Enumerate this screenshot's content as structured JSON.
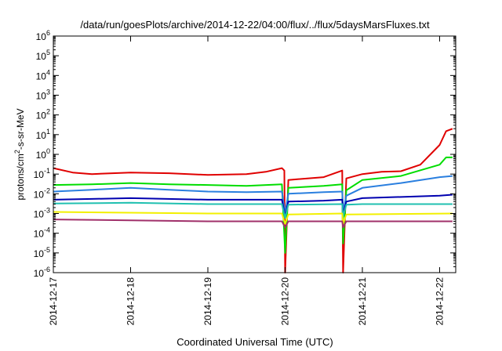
{
  "chart_data": {
    "type": "line",
    "title": "/data/run/goesPlots/archive/2014-12-22/04:00/flux/../flux/5daysMarsFluxes.txt",
    "xlabel": "Coordinated Universal Time (UTC)",
    "ylabel": {
      "pre": "protons/cm",
      "sup": "2",
      "post": "-s-sr-MeV"
    },
    "yscale": "log",
    "ylim": [
      -6,
      6
    ],
    "xlim": [
      "2014-12-17",
      "2014-12-22 05:00"
    ],
    "grid": false,
    "legend": "none",
    "x_ticks": [
      "2014-12-17",
      "2014-12-18",
      "2014-12-19",
      "2014-12-20",
      "2014-12-21",
      "2014-12-22"
    ],
    "y_ticks": [
      {
        "base": "10",
        "exp": "-6"
      },
      {
        "base": "10",
        "exp": "-5"
      },
      {
        "base": "10",
        "exp": "-4"
      },
      {
        "base": "10",
        "exp": "-3"
      },
      {
        "base": "10",
        "exp": "-2"
      },
      {
        "base": "10",
        "exp": "-1"
      },
      {
        "base": "10",
        "exp": "0"
      },
      {
        "base": "10",
        "exp": "1"
      },
      {
        "base": "10",
        "exp": "2"
      },
      {
        "base": "10",
        "exp": "3"
      },
      {
        "base": "10",
        "exp": "4"
      },
      {
        "base": "10",
        "exp": "5"
      },
      {
        "base": "10",
        "exp": "6"
      }
    ],
    "series": [
      {
        "color": "#e00000",
        "x": [
          "2014-12-17 00:00",
          "2014-12-17 06:00",
          "2014-12-17 12:00",
          "2014-12-18 00:00",
          "2014-12-18 12:00",
          "2014-12-19 00:00",
          "2014-12-19 12:00",
          "2014-12-19 18:00",
          "2014-12-19 23:00",
          "2014-12-19 23:45",
          "2014-12-20 00:00",
          "2014-12-20 01:00",
          "2014-12-20 12:00",
          "2014-12-20 17:45",
          "2014-12-20 18:00",
          "2014-12-20 19:00",
          "2014-12-21 00:00",
          "2014-12-21 06:00",
          "2014-12-21 12:00",
          "2014-12-21 18:00",
          "2014-12-22 00:00",
          "2014-12-22 02:00",
          "2014-12-22 04:00"
        ],
        "values": [
          0.2,
          0.12,
          0.1,
          0.12,
          0.11,
          0.09,
          0.1,
          0.13,
          0.2,
          0.15,
          1e-06,
          0.05,
          0.07,
          0.15,
          1e-06,
          0.06,
          0.1,
          0.13,
          0.14,
          0.3,
          3,
          15,
          20
        ]
      },
      {
        "color": "#00dd00",
        "x": [
          "2014-12-17 00:00",
          "2014-12-17 12:00",
          "2014-12-18 00:00",
          "2014-12-18 12:00",
          "2014-12-19 00:00",
          "2014-12-19 12:00",
          "2014-12-19 23:00",
          "2014-12-20 00:00",
          "2014-12-20 01:00",
          "2014-12-20 12:00",
          "2014-12-20 17:45",
          "2014-12-20 18:00",
          "2014-12-20 19:00",
          "2014-12-21 00:00",
          "2014-12-21 12:00",
          "2014-12-22 00:00",
          "2014-12-22 02:00",
          "2014-12-22 04:00"
        ],
        "values": [
          0.028,
          0.03,
          0.035,
          0.03,
          0.028,
          0.025,
          0.03,
          1e-05,
          0.02,
          0.025,
          0.03,
          3e-05,
          0.015,
          0.05,
          0.08,
          0.3,
          0.7,
          0.7
        ]
      },
      {
        "color": "#2a7fdf",
        "x": [
          "2014-12-17 00:00",
          "2014-12-17 12:00",
          "2014-12-18 00:00",
          "2014-12-18 12:00",
          "2014-12-19 00:00",
          "2014-12-19 12:00",
          "2014-12-19 23:00",
          "2014-12-20 00:00",
          "2014-12-20 01:00",
          "2014-12-20 12:00",
          "2014-12-20 17:45",
          "2014-12-20 18:00",
          "2014-12-20 19:00",
          "2014-12-21 00:00",
          "2014-12-21 12:00",
          "2014-12-22 00:00",
          "2014-12-22 04:00"
        ],
        "values": [
          0.013,
          0.016,
          0.02,
          0.016,
          0.013,
          0.012,
          0.013,
          0.001,
          0.01,
          0.012,
          0.013,
          0.0012,
          0.008,
          0.02,
          0.035,
          0.07,
          0.08
        ]
      },
      {
        "color": "#0000b0",
        "x": [
          "2014-12-17 00:00",
          "2014-12-17 12:00",
          "2014-12-18 00:00",
          "2014-12-19 00:00",
          "2014-12-19 23:00",
          "2014-12-20 00:00",
          "2014-12-20 01:00",
          "2014-12-20 12:00",
          "2014-12-20 17:45",
          "2014-12-20 18:00",
          "2014-12-20 19:00",
          "2014-12-21 00:00",
          "2014-12-22 00:00",
          "2014-12-22 04:00"
        ],
        "values": [
          0.005,
          0.0055,
          0.006,
          0.005,
          0.005,
          0.0007,
          0.004,
          0.0045,
          0.005,
          0.0008,
          0.004,
          0.006,
          0.008,
          0.009
        ]
      },
      {
        "color": "#20c0b0",
        "x": [
          "2014-12-17 00:00",
          "2014-12-18 00:00",
          "2014-12-19 00:00",
          "2014-12-19 23:00",
          "2014-12-20 00:00",
          "2014-12-20 01:00",
          "2014-12-20 17:45",
          "2014-12-20 18:00",
          "2014-12-20 19:00",
          "2014-12-21 00:00",
          "2014-12-22 04:00"
        ],
        "values": [
          0.0032,
          0.0035,
          0.003,
          0.003,
          0.0006,
          0.0028,
          0.003,
          0.0007,
          0.0028,
          0.003,
          0.003
        ]
      },
      {
        "color": "#f2f000",
        "x": [
          "2014-12-17 00:00",
          "2014-12-18 00:00",
          "2014-12-19 00:00",
          "2014-12-19 23:00",
          "2014-12-20 00:00",
          "2014-12-20 01:00",
          "2014-12-20 17:45",
          "2014-12-20 18:00",
          "2014-12-20 19:00",
          "2014-12-22 04:00"
        ],
        "values": [
          0.0012,
          0.0011,
          0.001,
          0.001,
          0.0003,
          0.0009,
          0.001,
          0.0003,
          0.0009,
          0.001
        ]
      },
      {
        "color": "#a0306a",
        "x": [
          "2014-12-17 00:00",
          "2014-12-18 00:00",
          "2014-12-19 00:00",
          "2014-12-19 23:00",
          "2014-12-20 00:00",
          "2014-12-20 01:00",
          "2014-12-20 17:45",
          "2014-12-20 18:00",
          "2014-12-20 19:00",
          "2014-12-22 04:00"
        ],
        "values": [
          0.0005,
          0.00045,
          0.0004,
          0.0004,
          0.0002,
          0.0004,
          0.0004,
          0.0002,
          0.0004,
          0.0004
        ]
      }
    ]
  }
}
